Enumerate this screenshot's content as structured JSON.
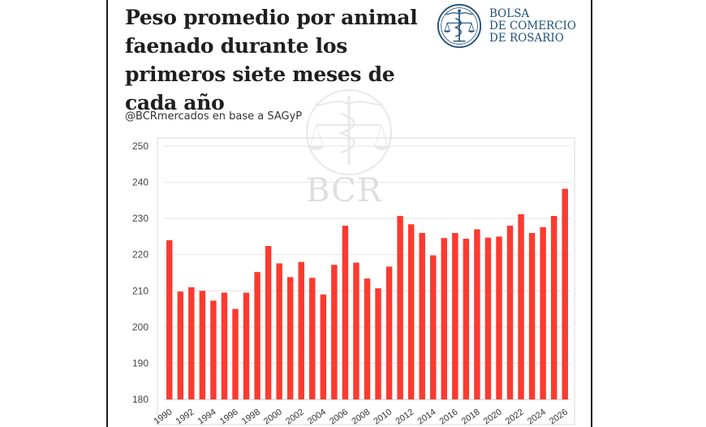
{
  "header": {
    "title": "Peso promedio por animal faenado durante los primeros siete meses de cada año",
    "source": "@BCRmercados en base a SAGyP"
  },
  "logo": {
    "icon": "caduceus-scales-seal-icon",
    "line1": "BOLSA",
    "line2": "DE COMERCIO",
    "line3": "DE ROSARIO",
    "color": "#1e4f7a"
  },
  "watermark": {
    "icon": "caduceus-scales-watermark-icon",
    "text": "BCR"
  },
  "chart_data": {
    "type": "bar",
    "title": "",
    "xlabel": "",
    "ylabel": "",
    "ylim": [
      180,
      250
    ],
    "yticks": [
      180,
      190,
      200,
      210,
      220,
      230,
      240,
      250
    ],
    "grid": true,
    "bar_color": "#fc3a2f",
    "categories": [
      "1990",
      "1991",
      "1992",
      "1993",
      "1994",
      "1995",
      "1996",
      "1997",
      "1998",
      "1999",
      "2000",
      "2001",
      "2002",
      "2003",
      "2004",
      "2005",
      "2006",
      "2007",
      "2008",
      "2009",
      "2010",
      "2011",
      "2012",
      "2013",
      "2014",
      "2015",
      "2016",
      "2017",
      "2018",
      "2019",
      "2020",
      "2021",
      "2022",
      "2023",
      "2024",
      "2025",
      "2026"
    ],
    "xtick_labels": [
      "1990",
      "",
      "1992",
      "",
      "1994",
      "",
      "1996",
      "",
      "1998",
      "",
      "2000",
      "",
      "2002",
      "",
      "2004",
      "",
      "2006",
      "",
      "2008",
      "",
      "2010",
      "",
      "2012",
      "",
      "2014",
      "",
      "2016",
      "",
      "2018",
      "",
      "2020",
      "",
      "2022",
      "",
      "2024",
      "",
      "2026"
    ],
    "values": [
      224.0,
      209.8,
      211.0,
      210.0,
      207.3,
      209.5,
      205.0,
      209.5,
      215.2,
      222.4,
      217.6,
      213.8,
      218.0,
      213.6,
      209.0,
      217.2,
      228.0,
      217.8,
      213.4,
      210.7,
      216.7,
      230.7,
      228.4,
      226.0,
      219.8,
      224.6,
      226.0,
      224.4,
      227.0,
      224.7,
      225.0,
      228.0,
      231.2,
      226.0,
      227.6,
      230.7,
      238.2
    ]
  }
}
